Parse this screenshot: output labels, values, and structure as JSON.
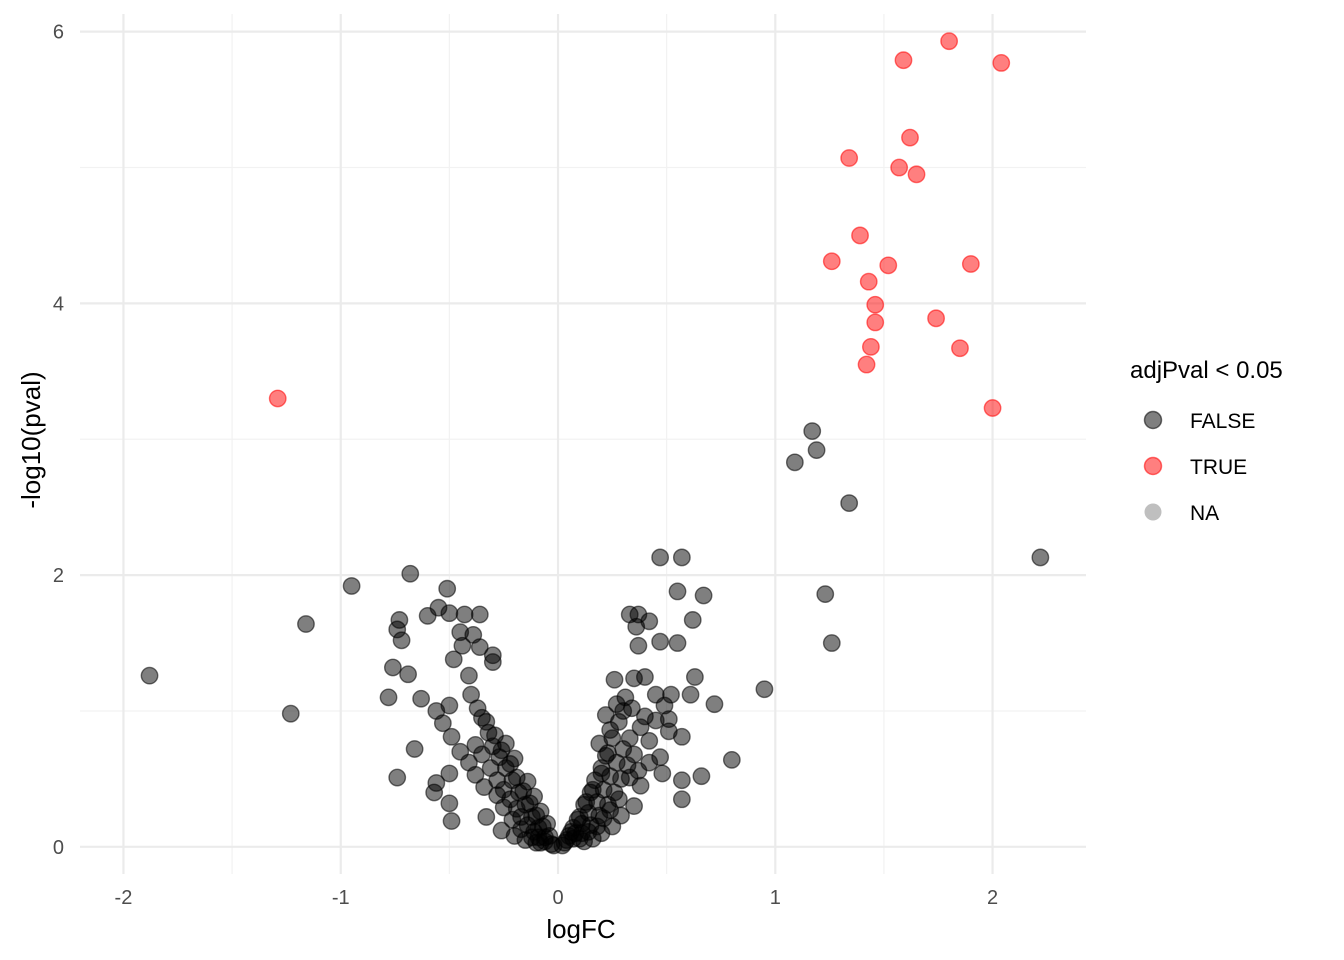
{
  "chart_data": {
    "type": "scatter",
    "title": "",
    "xlabel": "logFC",
    "ylabel": "-log10(pval)",
    "xlim": [
      -2.2,
      2.43
    ],
    "ylim": [
      -0.2,
      6.13
    ],
    "x_ticks": [
      "-2",
      "-1",
      "0",
      "1",
      "2"
    ],
    "y_ticks": [
      "0",
      "2",
      "4",
      "6"
    ],
    "grid": true,
    "legend_position": "right",
    "legend": {
      "title": "adjPval < 0.05",
      "entries": [
        {
          "label": "FALSE",
          "color": "#000000"
        },
        {
          "label": "TRUE",
          "color": "#ff0000"
        },
        {
          "label": "NA",
          "color": "#7f7f7f"
        }
      ]
    },
    "series": [
      {
        "name": "TRUE",
        "color": "#ff0000",
        "points": [
          [
            -1.29,
            3.3
          ],
          [
            1.8,
            5.93
          ],
          [
            1.59,
            5.79
          ],
          [
            2.04,
            5.77
          ],
          [
            1.62,
            5.22
          ],
          [
            1.34,
            5.07
          ],
          [
            1.57,
            5.0
          ],
          [
            1.65,
            4.95
          ],
          [
            1.39,
            4.5
          ],
          [
            1.26,
            4.31
          ],
          [
            1.52,
            4.28
          ],
          [
            1.9,
            4.29
          ],
          [
            1.43,
            4.16
          ],
          [
            1.46,
            3.99
          ],
          [
            1.46,
            3.86
          ],
          [
            1.74,
            3.89
          ],
          [
            1.44,
            3.68
          ],
          [
            1.85,
            3.67
          ],
          [
            1.42,
            3.55
          ],
          [
            2.0,
            3.23
          ]
        ]
      },
      {
        "name": "FALSE",
        "color": "#000000",
        "points": [
          [
            -1.88,
            1.26
          ],
          [
            -1.23,
            0.98
          ],
          [
            -1.16,
            1.64
          ],
          [
            -0.95,
            1.92
          ],
          [
            -0.68,
            2.01
          ],
          [
            -0.51,
            1.9
          ],
          [
            -0.73,
            1.67
          ],
          [
            -0.74,
            1.6
          ],
          [
            -0.72,
            1.52
          ],
          [
            -0.76,
            1.32
          ],
          [
            -0.78,
            1.1
          ],
          [
            -0.69,
            1.27
          ],
          [
            -0.63,
            1.09
          ],
          [
            -0.6,
            1.7
          ],
          [
            -0.55,
            1.76
          ],
          [
            -0.5,
            1.72
          ],
          [
            -0.43,
            1.71
          ],
          [
            -0.36,
            1.71
          ],
          [
            -0.45,
            1.58
          ],
          [
            -0.39,
            1.56
          ],
          [
            -0.36,
            1.47
          ],
          [
            -0.44,
            1.48
          ],
          [
            -0.48,
            1.38
          ],
          [
            -0.41,
            1.26
          ],
          [
            -0.3,
            1.41
          ],
          [
            -0.3,
            1.36
          ],
          [
            -0.5,
            1.04
          ],
          [
            -0.56,
            1.0
          ],
          [
            -0.53,
            0.91
          ],
          [
            -0.49,
            0.81
          ],
          [
            -0.45,
            0.7
          ],
          [
            -0.66,
            0.72
          ],
          [
            -0.74,
            0.51
          ],
          [
            -0.5,
            0.54
          ],
          [
            -0.56,
            0.47
          ],
          [
            -0.57,
            0.4
          ],
          [
            -0.5,
            0.32
          ],
          [
            -0.49,
            0.19
          ],
          [
            -0.41,
            0.62
          ],
          [
            -0.38,
            0.53
          ],
          [
            -0.34,
            0.44
          ],
          [
            -0.28,
            0.38
          ],
          [
            -0.25,
            0.29
          ],
          [
            -0.21,
            0.2
          ],
          [
            -0.17,
            0.13
          ],
          [
            -0.12,
            0.07
          ],
          [
            -0.08,
            0.03
          ],
          [
            -0.35,
            0.95
          ],
          [
            -0.32,
            0.84
          ],
          [
            -0.3,
            0.74
          ],
          [
            -0.27,
            0.66
          ],
          [
            -0.24,
            0.58
          ],
          [
            -0.21,
            0.49
          ],
          [
            -0.18,
            0.4
          ],
          [
            -0.15,
            0.31
          ],
          [
            -0.12,
            0.22
          ],
          [
            -0.09,
            0.14
          ],
          [
            -0.06,
            0.07
          ],
          [
            -0.03,
            0.02
          ],
          [
            -0.4,
            1.12
          ],
          [
            -0.37,
            1.02
          ],
          [
            -0.33,
            0.92
          ],
          [
            -0.29,
            0.82
          ],
          [
            -0.26,
            0.71
          ],
          [
            -0.22,
            0.61
          ],
          [
            -0.19,
            0.51
          ],
          [
            -0.16,
            0.41
          ],
          [
            -0.13,
            0.32
          ],
          [
            -0.1,
            0.23
          ],
          [
            -0.07,
            0.15
          ],
          [
            -0.04,
            0.08
          ],
          [
            -0.31,
            0.58
          ],
          [
            -0.28,
            0.49
          ],
          [
            -0.25,
            0.42
          ],
          [
            -0.22,
            0.35
          ],
          [
            -0.19,
            0.28
          ],
          [
            -0.17,
            0.22
          ],
          [
            -0.14,
            0.16
          ],
          [
            -0.11,
            0.11
          ],
          [
            -0.09,
            0.07
          ],
          [
            -0.06,
            0.04
          ],
          [
            -0.02,
            0.01
          ],
          [
            -0.38,
            0.75
          ],
          [
            -0.35,
            0.68
          ],
          [
            -0.24,
            0.76
          ],
          [
            -0.2,
            0.65
          ],
          [
            -0.14,
            0.48
          ],
          [
            -0.11,
            0.37
          ],
          [
            -0.08,
            0.26
          ],
          [
            -0.05,
            0.17
          ],
          [
            -0.33,
            0.22
          ],
          [
            -0.26,
            0.12
          ],
          [
            -0.2,
            0.08
          ],
          [
            -0.15,
            0.05
          ],
          [
            -0.1,
            0.03
          ],
          [
            0.47,
            2.13
          ],
          [
            0.57,
            2.13
          ],
          [
            0.55,
            1.88
          ],
          [
            0.67,
            1.85
          ],
          [
            0.62,
            1.67
          ],
          [
            0.33,
            1.71
          ],
          [
            0.37,
            1.71
          ],
          [
            0.42,
            1.66
          ],
          [
            0.36,
            1.62
          ],
          [
            0.37,
            1.48
          ],
          [
            0.47,
            1.51
          ],
          [
            0.55,
            1.5
          ],
          [
            0.63,
            1.25
          ],
          [
            0.26,
            1.23
          ],
          [
            0.35,
            1.24
          ],
          [
            0.4,
            1.25
          ],
          [
            0.45,
            1.12
          ],
          [
            0.52,
            1.12
          ],
          [
            0.61,
            1.12
          ],
          [
            0.72,
            1.05
          ],
          [
            0.49,
            1.04
          ],
          [
            0.4,
            0.96
          ],
          [
            0.45,
            0.93
          ],
          [
            0.51,
            0.94
          ],
          [
            0.57,
            0.81
          ],
          [
            0.51,
            0.85
          ],
          [
            0.8,
            0.64
          ],
          [
            0.47,
            0.66
          ],
          [
            0.42,
            0.62
          ],
          [
            0.37,
            0.56
          ],
          [
            0.33,
            0.51
          ],
          [
            0.48,
            0.54
          ],
          [
            0.57,
            0.49
          ],
          [
            0.66,
            0.52
          ],
          [
            0.57,
            0.35
          ],
          [
            0.95,
            1.16
          ],
          [
            1.09,
            2.83
          ],
          [
            1.17,
            3.06
          ],
          [
            1.19,
            2.92
          ],
          [
            1.34,
            2.53
          ],
          [
            1.23,
            1.86
          ],
          [
            1.26,
            1.5
          ],
          [
            2.22,
            2.13
          ],
          [
            0.19,
            0.76
          ],
          [
            0.24,
            0.86
          ],
          [
            0.22,
            0.67
          ],
          [
            0.2,
            0.58
          ],
          [
            0.17,
            0.49
          ],
          [
            0.15,
            0.4
          ],
          [
            0.12,
            0.31
          ],
          [
            0.1,
            0.22
          ],
          [
            0.07,
            0.14
          ],
          [
            0.05,
            0.08
          ],
          [
            0.03,
            0.03
          ],
          [
            0.28,
            0.92
          ],
          [
            0.25,
            0.8
          ],
          [
            0.23,
            0.69
          ],
          [
            0.2,
            0.54
          ],
          [
            0.16,
            0.42
          ],
          [
            0.13,
            0.33
          ],
          [
            0.09,
            0.2
          ],
          [
            0.06,
            0.11
          ],
          [
            0.3,
            0.72
          ],
          [
            0.27,
            0.62
          ],
          [
            0.24,
            0.52
          ],
          [
            0.21,
            0.42
          ],
          [
            0.18,
            0.33
          ],
          [
            0.14,
            0.25
          ],
          [
            0.11,
            0.17
          ],
          [
            0.08,
            0.1
          ],
          [
            0.04,
            0.05
          ],
          [
            0.32,
            0.6
          ],
          [
            0.29,
            0.5
          ],
          [
            0.26,
            0.4
          ],
          [
            0.23,
            0.31
          ],
          [
            0.19,
            0.23
          ],
          [
            0.15,
            0.16
          ],
          [
            0.11,
            0.1
          ],
          [
            0.07,
            0.06
          ],
          [
            0.3,
            1.0
          ],
          [
            0.33,
            0.8
          ],
          [
            0.35,
            0.68
          ],
          [
            0.38,
            0.45
          ],
          [
            0.28,
            0.35
          ],
          [
            0.24,
            0.27
          ],
          [
            0.21,
            0.21
          ],
          [
            0.18,
            0.15
          ],
          [
            0.14,
            0.11
          ],
          [
            0.1,
            0.06
          ],
          [
            0.02,
            0.01
          ],
          [
            0.42,
            0.78
          ],
          [
            0.38,
            0.88
          ],
          [
            0.31,
            1.1
          ],
          [
            0.34,
            1.02
          ],
          [
            0.27,
            1.05
          ],
          [
            0.22,
            0.97
          ],
          [
            0.35,
            0.3
          ],
          [
            0.29,
            0.23
          ],
          [
            0.25,
            0.15
          ],
          [
            0.2,
            0.1
          ],
          [
            0.16,
            0.06
          ],
          [
            0.12,
            0.04
          ]
        ]
      }
    ]
  }
}
